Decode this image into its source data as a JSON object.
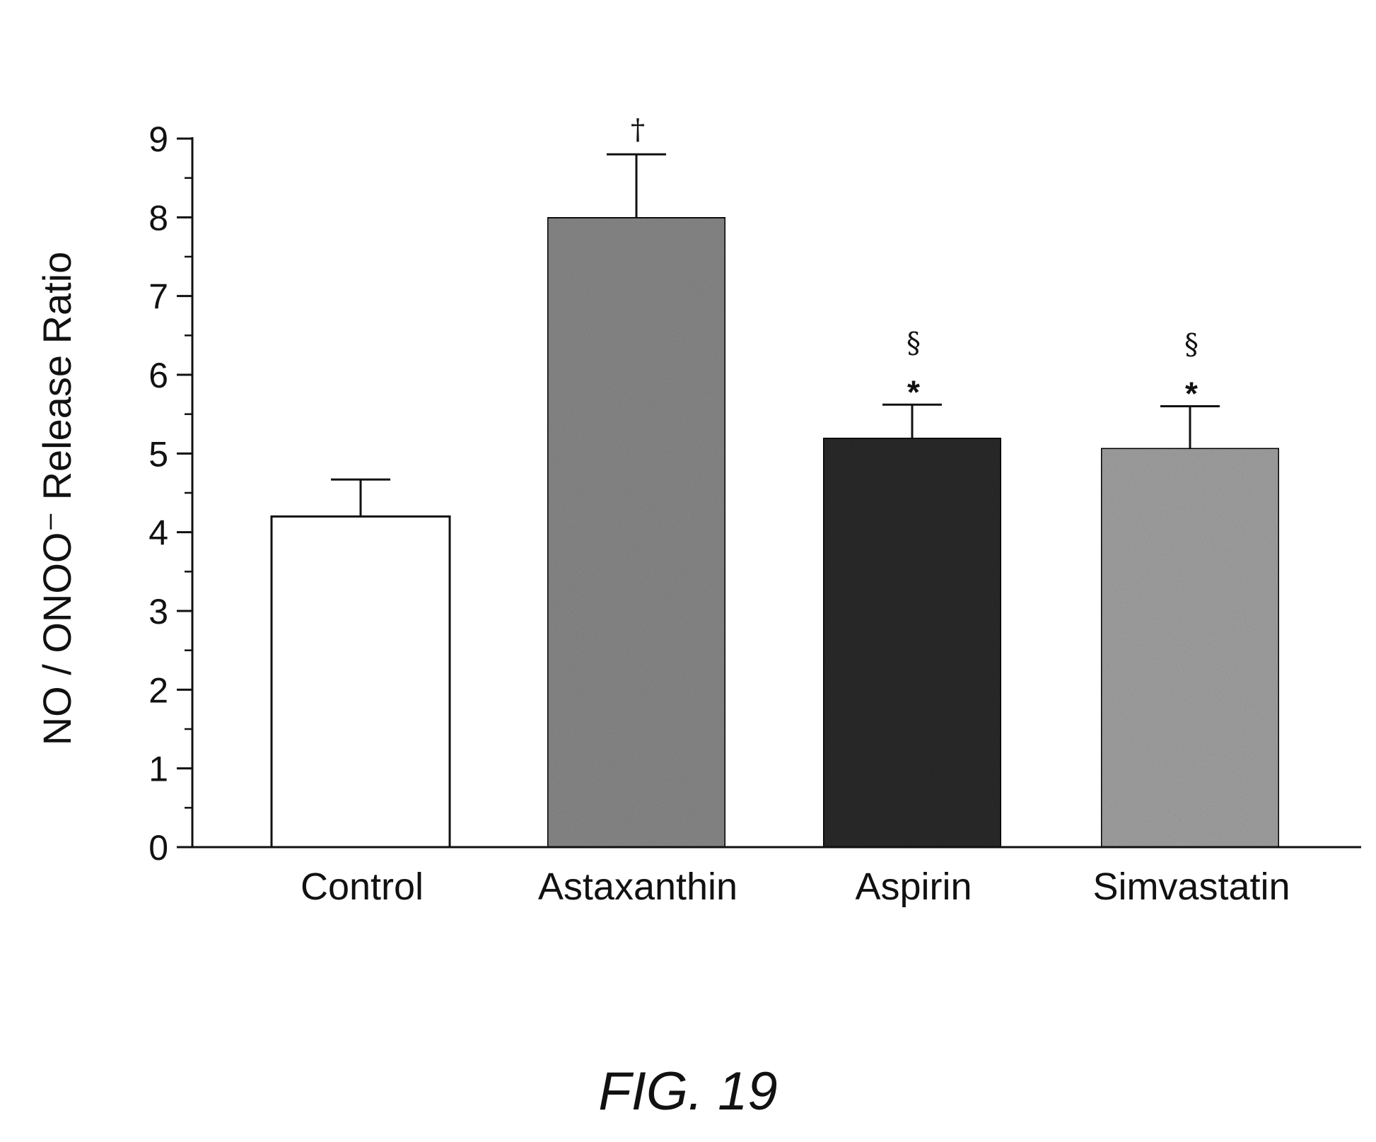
{
  "chart_data": {
    "type": "bar",
    "ylabel": "NO / ONOO⁻ Release Ratio",
    "ylabel_sup": "",
    "categories": [
      "Control",
      "Astaxanthin",
      "Aspirin",
      "Simvastatin"
    ],
    "values": [
      4.2,
      8.0,
      5.2,
      5.07
    ],
    "error": [
      0.47,
      0.8,
      0.42,
      0.53
    ],
    "annotations": [
      [],
      [
        "†"
      ],
      [
        "§",
        "*"
      ],
      [
        "§",
        "*"
      ]
    ],
    "colors": [
      "#ffffff",
      "#8c8c8c",
      "#2e2e2e",
      "#a6a6a6"
    ],
    "ylim": [
      0,
      9
    ],
    "yticks": [
      "0",
      "1",
      "2",
      "3",
      "4",
      "5",
      "6",
      "7",
      "8",
      "9"
    ],
    "grid": false
  },
  "caption": "FIG. 19"
}
